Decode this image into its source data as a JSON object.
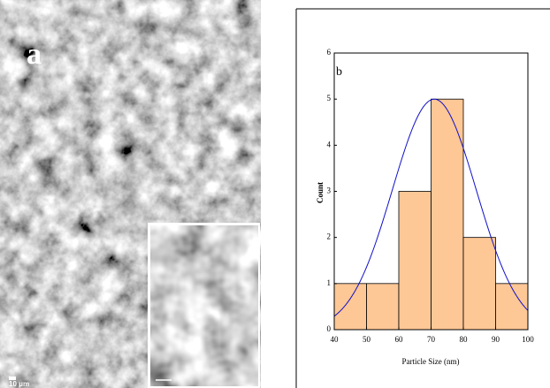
{
  "panel_a": {
    "label": "a",
    "scale_bar": "10 μm"
  },
  "chart_data": {
    "type": "histogram",
    "panel_label": "b",
    "x_label": "Particle Size (nm)",
    "y_label": "Count",
    "bins": [
      40,
      50,
      60,
      70,
      80,
      90,
      100
    ],
    "counts": [
      1,
      1,
      3,
      5,
      2,
      1
    ],
    "color": "#fdc796",
    "edge_color": "#000000",
    "fit": {
      "mean": 71,
      "sd": 13,
      "peak": 5,
      "color": "#1010c8"
    },
    "xlim": [
      40,
      100
    ],
    "xticks": [
      40,
      50,
      60,
      70,
      80,
      90,
      100
    ],
    "ylim": [
      0,
      6
    ],
    "yticks": [
      0,
      1,
      2,
      3,
      4,
      5,
      6
    ]
  }
}
